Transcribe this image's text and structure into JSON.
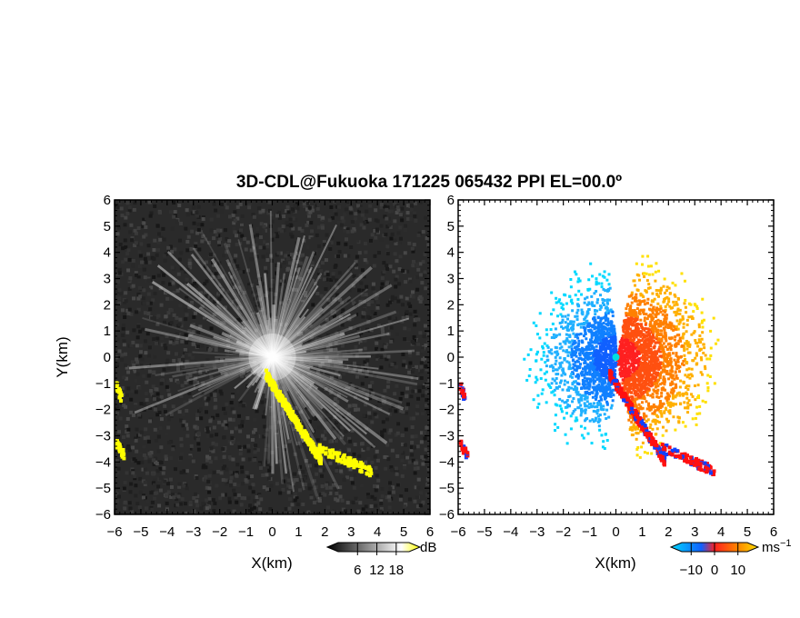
{
  "title": "3D-CDL@Fukuoka 171225 065432 PPI EL=00.0º",
  "chart_data": [
    {
      "type": "heatmap",
      "name": "reflectivity",
      "xlabel": "X(km)",
      "ylabel": "Y(km)",
      "xlim": [
        -6,
        6
      ],
      "ylim": [
        -6,
        6
      ],
      "x_ticks": [
        "−6",
        "−5",
        "−4",
        "−3",
        "−2",
        "−1",
        "0",
        "1",
        "2",
        "3",
        "4",
        "5",
        "6"
      ],
      "y_ticks": [
        "−6",
        "−5",
        "−4",
        "−3",
        "−2",
        "−1",
        "0",
        "1",
        "2",
        "3",
        "4",
        "5",
        "6"
      ],
      "colorbar": {
        "unit": "dB",
        "ticks": [
          "6",
          "12",
          "18"
        ],
        "range": [
          0,
          22
        ],
        "colors": [
          "#000000",
          "#ffffff",
          "#ffff00"
        ]
      },
      "yellow_echo_regions": [
        {
          "x": [
            -0.3,
            1.8
          ],
          "y": [
            -3.9,
            -0.6
          ]
        },
        {
          "x": [
            1.7,
            3.7
          ],
          "y": [
            -4.3,
            -3.4
          ]
        },
        {
          "x": [
            -6.0,
            -5.7
          ],
          "y": [
            -3.7,
            -3.2
          ]
        },
        {
          "x": [
            -6.0,
            -5.8
          ],
          "y": [
            -1.5,
            -1.0
          ]
        }
      ]
    },
    {
      "type": "heatmap",
      "name": "doppler_velocity",
      "xlabel": "X(km)",
      "xlim": [
        -6,
        6
      ],
      "ylim": [
        -6,
        6
      ],
      "x_ticks": [
        "−6",
        "−5",
        "−4",
        "−3",
        "−2",
        "−1",
        "0",
        "1",
        "2",
        "3",
        "4",
        "5",
        "6"
      ],
      "colorbar": {
        "unit": "ms",
        "unit_sup": "−1",
        "ticks": [
          "−10",
          "0",
          "10"
        ],
        "range": [
          -14,
          14
        ],
        "colors": [
          "#00d8ff",
          "#1060ff",
          "#ff2020",
          "#ff8000",
          "#ffe000"
        ]
      },
      "velocity_sectors": [
        {
          "side": "west",
          "sign": "negative",
          "angle_deg": [
            95,
            265
          ],
          "max_range_km": 3.8
        },
        {
          "side": "east",
          "sign": "positive",
          "angle_deg": [
            -85,
            85
          ],
          "max_range_km": 4.0
        }
      ]
    }
  ]
}
